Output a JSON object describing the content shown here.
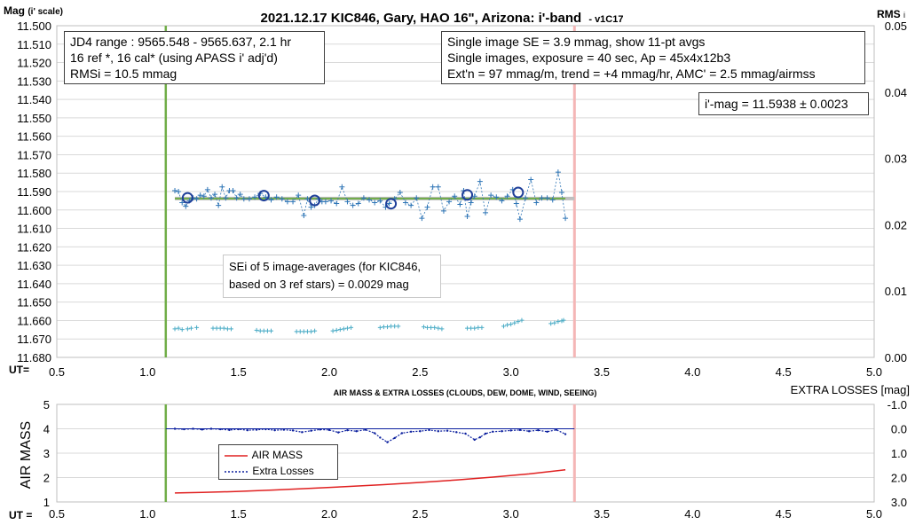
{
  "title": {
    "main": "2021.12.17 KIC846, Gary, HAO 16\", Arizona: i'-band",
    "version": "- v1C17"
  },
  "top_axes": {
    "ylabel_main": "Mag",
    "ylabel_sub": "(i' scale)",
    "y2label_main": "RMS",
    "y2label_sub": "i",
    "xlabel": "UT=",
    "x_ticks": [
      "0.5",
      "1.0",
      "1.5",
      "2.0",
      "2.5",
      "3.0",
      "3.5",
      "4.0",
      "4.5",
      "5.0"
    ],
    "y_ticks": [
      "11.500",
      "11.510",
      "11.520",
      "11.530",
      "11.540",
      "11.550",
      "11.560",
      "11.570",
      "11.580",
      "11.590",
      "11.600",
      "11.610",
      "11.620",
      "11.630",
      "11.640",
      "11.650",
      "11.660",
      "11.670",
      "11.680"
    ],
    "y2_ticks": [
      "0.05",
      "0.04",
      "0.03",
      "0.02",
      "0.01",
      "0.00"
    ]
  },
  "bottom_axes": {
    "title": "AIR MASS & EXTRA LOSSES (CLOUDS, DEW, DOME, WIND, SEEING)",
    "ylabel": "AIR MASS",
    "y2label": "EXTRA LOSSES [mag]",
    "xlabel": "UT =",
    "x_ticks": [
      "0.5",
      "1.0",
      "1.5",
      "2.0",
      "2.5",
      "3.0",
      "3.5",
      "4.0",
      "4.5",
      "5.0"
    ],
    "y_ticks": [
      "5",
      "4",
      "3",
      "2",
      "1"
    ],
    "y2_ticks": [
      "-1.0",
      "0.0",
      "1.0",
      "2.0",
      "3.0"
    ]
  },
  "info_left": [
    "JD4 range : 9565.548 - 9565.637, 2.1  hr",
    "16 ref *, 16 cal* (using APASS i' adj'd)",
    "RMSi = 10.5 mmag"
  ],
  "info_right": [
    "Single image SE = 3.9 mmag, show 11-pt avgs",
    "Single images, exposure = 40 sec, Ap = 45x4x12b3",
    "Ext'n = 97 mmag/m, trend = +4 mmag/hr, AMC' = 2.5 mmag/airmss"
  ],
  "mag_result": "i'-mag = 11.5938 ± 0.0023",
  "se_note": [
    "SEi of 5 image-averages (for KIC846,",
    "based on 3 ref stars) = 0.0029 mag"
  ],
  "legend": {
    "air_mass": "AIR MASS",
    "extra_losses": "Extra Losses"
  },
  "colors": {
    "data_blue": "#2e75b6",
    "avg_circle": "#1f3f99",
    "green_line": "#70ad47",
    "fit_line": "#bfbfbf",
    "pink_line": "#f4b6b6",
    "gridline": "#d9d9d9",
    "rms_teal": "#4bacc6",
    "air_mass_red": "#e02020",
    "extra_loss_navy": "#0b1f9e"
  },
  "chart_data": [
    {
      "type": "scatter",
      "title": "2021.12.17 KIC846, Gary, HAO 16\", Arizona: i'-band",
      "xlabel": "UT=",
      "ylabel": "Mag (i' scale)",
      "y2label": "RMS i",
      "xlim": [
        0.5,
        5.0
      ],
      "ylim": [
        11.68,
        11.5
      ],
      "y2lim": [
        0.0,
        0.05
      ],
      "grid": true,
      "vertical_markers": {
        "start_ut": 1.1,
        "end_ut": 3.35
      },
      "mean_mag": 11.5938,
      "fit_range": [
        1.15,
        3.35
      ],
      "series": [
        {
          "name": "",
          "style": "plus-dashed",
          "x": [
            1.15,
            1.17,
            1.19,
            1.21,
            1.23,
            1.25,
            1.27,
            1.29,
            1.31,
            1.33,
            1.35,
            1.37,
            1.39,
            1.41,
            1.43,
            1.45,
            1.47,
            1.49,
            1.51,
            1.53,
            1.56,
            1.59,
            1.62,
            1.65,
            1.68,
            1.71,
            1.74,
            1.77,
            1.8,
            1.83,
            1.86,
            1.88,
            1.9,
            1.92,
            1.94,
            1.96,
            1.98,
            2.01,
            2.04,
            2.07,
            2.1,
            2.13,
            2.16,
            2.19,
            2.22,
            2.25,
            2.28,
            2.31,
            2.33,
            2.36,
            2.39,
            2.42,
            2.45,
            2.48,
            2.51,
            2.54,
            2.57,
            2.6,
            2.63,
            2.66,
            2.69,
            2.72,
            2.74,
            2.76,
            2.78,
            2.8,
            2.83,
            2.86,
            2.89,
            2.92,
            2.95,
            2.98,
            3.01,
            3.03,
            3.05,
            3.08,
            3.11,
            3.14,
            3.17,
            3.2,
            3.23,
            3.26,
            3.28,
            3.3
          ],
          "y": [
            11.5895,
            11.59,
            11.596,
            11.598,
            11.595,
            11.5935,
            11.594,
            11.592,
            11.5925,
            11.589,
            11.5935,
            11.5915,
            11.5975,
            11.5875,
            11.5935,
            11.5895,
            11.5895,
            11.5935,
            11.5915,
            11.594,
            11.594,
            11.593,
            11.591,
            11.593,
            11.5945,
            11.593,
            11.594,
            11.5955,
            11.5955,
            11.592,
            11.603,
            11.594,
            11.5985,
            11.5975,
            11.594,
            11.5955,
            11.5955,
            11.595,
            11.5965,
            11.5875,
            11.5955,
            11.5975,
            11.5965,
            11.5935,
            11.5945,
            11.596,
            11.595,
            11.5985,
            11.5965,
            11.594,
            11.5905,
            11.596,
            11.5975,
            11.5935,
            11.6045,
            11.5985,
            11.5875,
            11.5875,
            11.6005,
            11.5955,
            11.5925,
            11.597,
            11.5895,
            11.6035,
            11.596,
            11.5925,
            11.5845,
            11.6015,
            11.592,
            11.593,
            11.595,
            11.5925,
            11.589,
            11.5965,
            11.605,
            11.5935,
            11.5835,
            11.596,
            11.5935,
            11.5935,
            11.5945,
            11.5795,
            11.5905,
            11.6045
          ]
        },
        {
          "name": "",
          "style": "circle",
          "x": [
            1.22,
            1.64,
            1.92,
            2.34,
            2.76,
            3.04
          ],
          "y": [
            11.5934,
            11.5922,
            11.5948,
            11.5966,
            11.5918,
            11.5905
          ]
        },
        {
          "name": "",
          "style": "plus-teal",
          "axis": "y2",
          "x": [
            1.15,
            1.17,
            1.19,
            1.22,
            1.24,
            1.27,
            1.36,
            1.38,
            1.4,
            1.42,
            1.44,
            1.46,
            1.6,
            1.62,
            1.64,
            1.66,
            1.68,
            1.82,
            1.84,
            1.86,
            1.88,
            1.9,
            1.92,
            2.02,
            2.04,
            2.06,
            2.08,
            2.1,
            2.12,
            2.28,
            2.3,
            2.32,
            2.34,
            2.36,
            2.38,
            2.52,
            2.54,
            2.56,
            2.58,
            2.6,
            2.62,
            2.76,
            2.78,
            2.8,
            2.82,
            2.84,
            2.96,
            2.98,
            3.0,
            3.02,
            3.04,
            3.06,
            3.22,
            3.24,
            3.26,
            3.28,
            3.29
          ],
          "y": [
            0.0043,
            0.0044,
            0.0042,
            0.0043,
            0.0044,
            0.0045,
            0.0044,
            0.0044,
            0.0044,
            0.0044,
            0.0043,
            0.0043,
            0.0041,
            0.004,
            0.004,
            0.004,
            0.004,
            0.0039,
            0.0039,
            0.0039,
            0.0039,
            0.0039,
            0.004,
            0.004,
            0.0041,
            0.0042,
            0.0043,
            0.0044,
            0.0045,
            0.0045,
            0.0046,
            0.0046,
            0.0047,
            0.0047,
            0.0047,
            0.0046,
            0.0045,
            0.0045,
            0.0045,
            0.0044,
            0.0043,
            0.0044,
            0.0044,
            0.0044,
            0.0045,
            0.0045,
            0.0047,
            0.0049,
            0.005,
            0.0052,
            0.0054,
            0.0056,
            0.0051,
            0.0052,
            0.0054,
            0.0055,
            0.0056
          ]
        }
      ]
    },
    {
      "type": "line",
      "title": "AIR MASS & EXTRA LOSSES (CLOUDS, DEW, DOME, WIND, SEEING)",
      "xlabel": "UT =",
      "ylabel": "AIR MASS",
      "y2label": "EXTRA LOSSES [mag]",
      "xlim": [
        0.5,
        5.0
      ],
      "ylim": [
        1,
        5
      ],
      "y2lim": [
        3.0,
        -1.0
      ],
      "vertical_markers": {
        "start_ut": 1.1,
        "end_ut": 3.35
      },
      "series": [
        {
          "name": "AIR MASS",
          "x": [
            1.15,
            1.3,
            1.5,
            1.7,
            1.9,
            2.1,
            2.3,
            2.5,
            2.7,
            2.9,
            3.1,
            3.3
          ],
          "y": [
            1.37,
            1.39,
            1.43,
            1.49,
            1.56,
            1.63,
            1.71,
            1.8,
            1.9,
            2.02,
            2.15,
            2.32
          ]
        },
        {
          "name": "Extra Losses",
          "axis": "y2",
          "x": [
            1.15,
            1.2,
            1.25,
            1.3,
            1.35,
            1.4,
            1.45,
            1.5,
            1.55,
            1.6,
            1.65,
            1.7,
            1.75,
            1.8,
            1.85,
            1.9,
            1.95,
            2.0,
            2.05,
            2.1,
            2.15,
            2.2,
            2.25,
            2.28,
            2.32,
            2.36,
            2.4,
            2.45,
            2.5,
            2.55,
            2.6,
            2.65,
            2.7,
            2.75,
            2.8,
            2.83,
            2.86,
            2.9,
            2.95,
            3.0,
            3.05,
            3.1,
            3.15,
            3.2,
            3.25,
            3.3
          ],
          "y": [
            0.0,
            0.02,
            0.0,
            0.03,
            0.0,
            0.02,
            0.05,
            0.02,
            0.06,
            0.04,
            0.02,
            0.06,
            0.04,
            0.07,
            0.14,
            0.08,
            0.03,
            0.05,
            0.15,
            0.06,
            0.1,
            0.04,
            0.18,
            0.36,
            0.55,
            0.38,
            0.18,
            0.12,
            0.1,
            0.05,
            0.1,
            0.08,
            0.14,
            0.2,
            0.45,
            0.35,
            0.2,
            0.12,
            0.1,
            0.07,
            0.05,
            0.1,
            0.06,
            0.12,
            0.04,
            0.22
          ]
        }
      ]
    }
  ]
}
